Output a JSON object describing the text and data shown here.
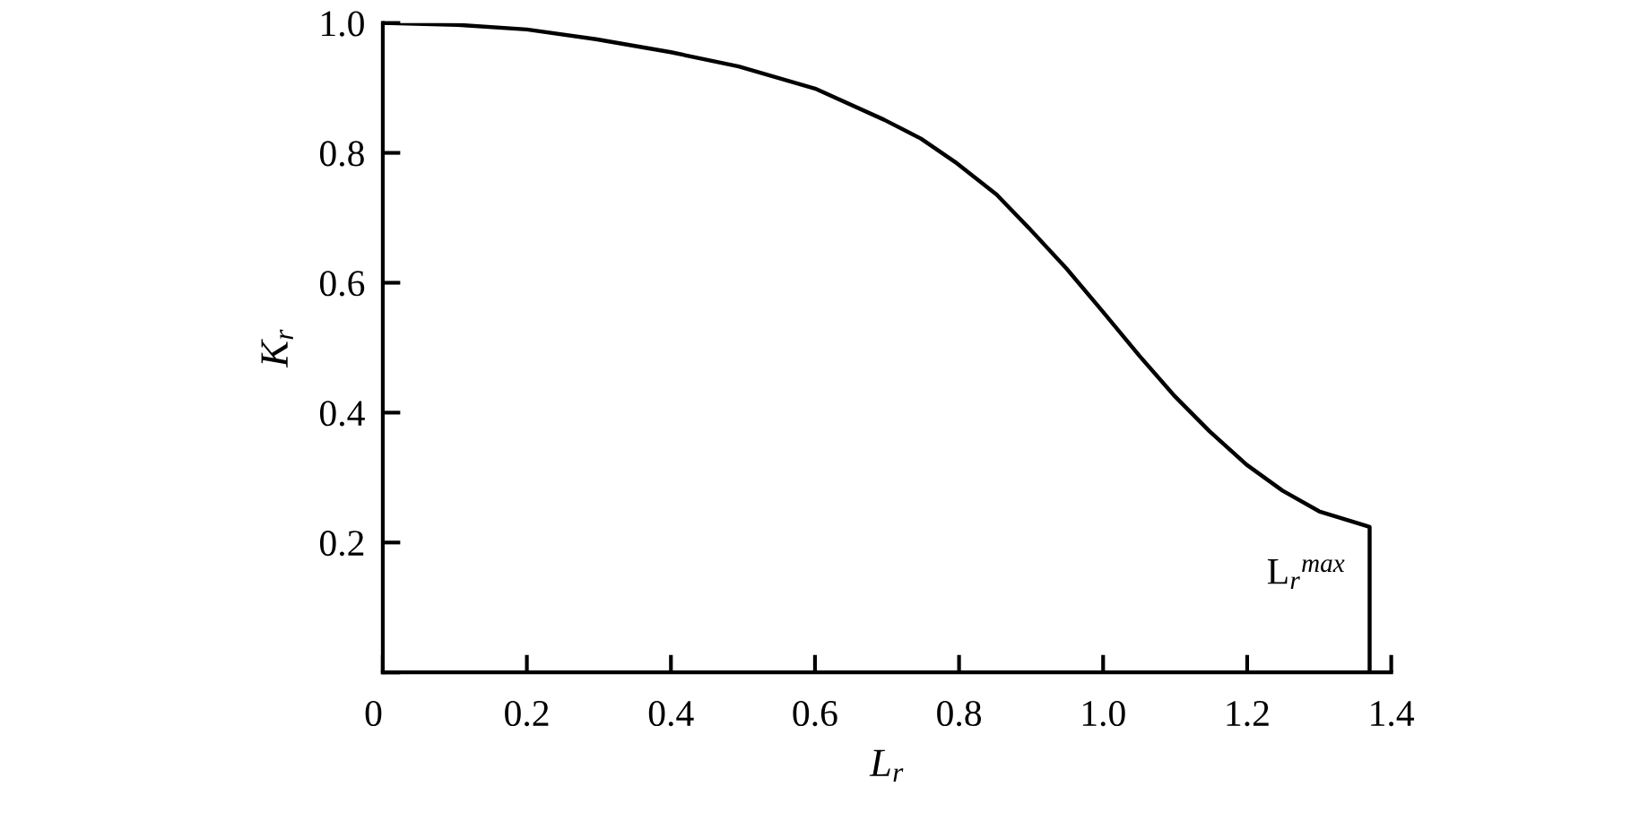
{
  "chart_data": {
    "type": "line",
    "xlabel": "L$_{r}$",
    "ylabel": "K$_{r}$",
    "series": [
      {
        "color": "#000000",
        "x": [
          0,
          0.104,
          0.2,
          0.296,
          0.4,
          0.494,
          0.6,
          0.696,
          0.747,
          0.797,
          0.852,
          0.898,
          0.949,
          1.0,
          1.05,
          1.098,
          1.148,
          1.199,
          1.249,
          1.3,
          1.37,
          1.37
        ],
        "values": [
          1.0,
          0.997,
          0.99,
          0.975,
          0.955,
          0.933,
          0.899,
          0.851,
          0.822,
          0.784,
          0.736,
          0.683,
          0.622,
          0.555,
          0.488,
          0.427,
          0.371,
          0.32,
          0.28,
          0.248,
          0.224,
          0
        ]
      }
    ],
    "xlim": [
      0,
      1.4
    ],
    "ylim": [
      0,
      1.0
    ],
    "xticks": [
      0,
      0.2,
      0.4,
      0.6,
      0.8,
      {
        "value": 1.0,
        "label": "1.0"
      },
      1.2,
      1.4
    ],
    "yticks": [
      {
        "value": 0,
        "label": null
      },
      0.2,
      0.4,
      0.6,
      0.8,
      {
        "value": 1.0,
        "label": "1.0"
      }
    ],
    "annotations": [
      "L$_{r}$$^{max}$"
    ],
    "grid": false,
    "legend": false,
    "marker": "none",
    "line_style": "solid"
  }
}
